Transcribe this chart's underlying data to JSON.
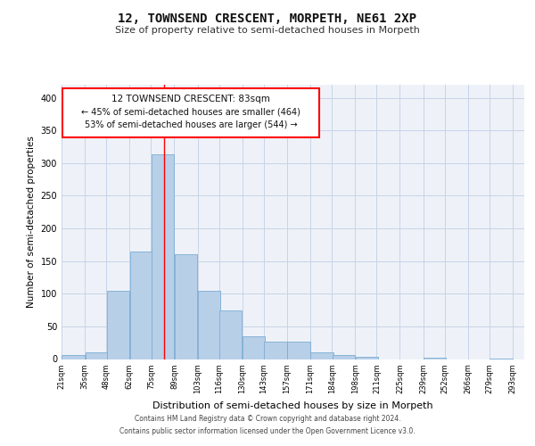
{
  "title1": "12, TOWNSEND CRESCENT, MORPETH, NE61 2XP",
  "title2": "Size of property relative to semi-detached houses in Morpeth",
  "xlabel": "Distribution of semi-detached houses by size in Morpeth",
  "ylabel": "Number of semi-detached properties",
  "footer1": "Contains HM Land Registry data © Crown copyright and database right 2024.",
  "footer2": "Contains public sector information licensed under the Open Government Licence v3.0.",
  "property_size": 83,
  "property_label": "12 TOWNSEND CRESCENT: 83sqm",
  "pct_smaller": 45,
  "n_smaller": 464,
  "pct_larger": 53,
  "n_larger": 544,
  "bar_color": "#b8cfe8",
  "bar_edge_color": "#7aadd4",
  "redline_color": "red",
  "grid_color": "#c8d4e8",
  "background_color": "#eef2f8",
  "categories": [
    "21sqm",
    "35sqm",
    "48sqm",
    "62sqm",
    "75sqm",
    "89sqm",
    "103sqm",
    "116sqm",
    "130sqm",
    "143sqm",
    "157sqm",
    "171sqm",
    "184sqm",
    "198sqm",
    "211sqm",
    "225sqm",
    "239sqm",
    "252sqm",
    "266sqm",
    "279sqm",
    "293sqm"
  ],
  "bar_centers": [
    28,
    42,
    55,
    69,
    82,
    96,
    110,
    123,
    137,
    150,
    164,
    178,
    191,
    205,
    218,
    232,
    246,
    259,
    273,
    286
  ],
  "bar_heights": [
    6,
    10,
    105,
    165,
    313,
    160,
    105,
    75,
    35,
    27,
    27,
    10,
    6,
    4,
    0,
    0,
    2,
    0,
    0,
    1
  ],
  "bin_width": 13.5,
  "ylim": [
    0,
    420
  ],
  "xlim": [
    21,
    300
  ],
  "yticks": [
    0,
    50,
    100,
    150,
    200,
    250,
    300,
    350,
    400
  ],
  "xtick_positions": [
    21,
    35,
    48,
    62,
    75,
    89,
    103,
    116,
    130,
    143,
    157,
    171,
    184,
    198,
    211,
    225,
    239,
    252,
    266,
    279,
    293
  ]
}
